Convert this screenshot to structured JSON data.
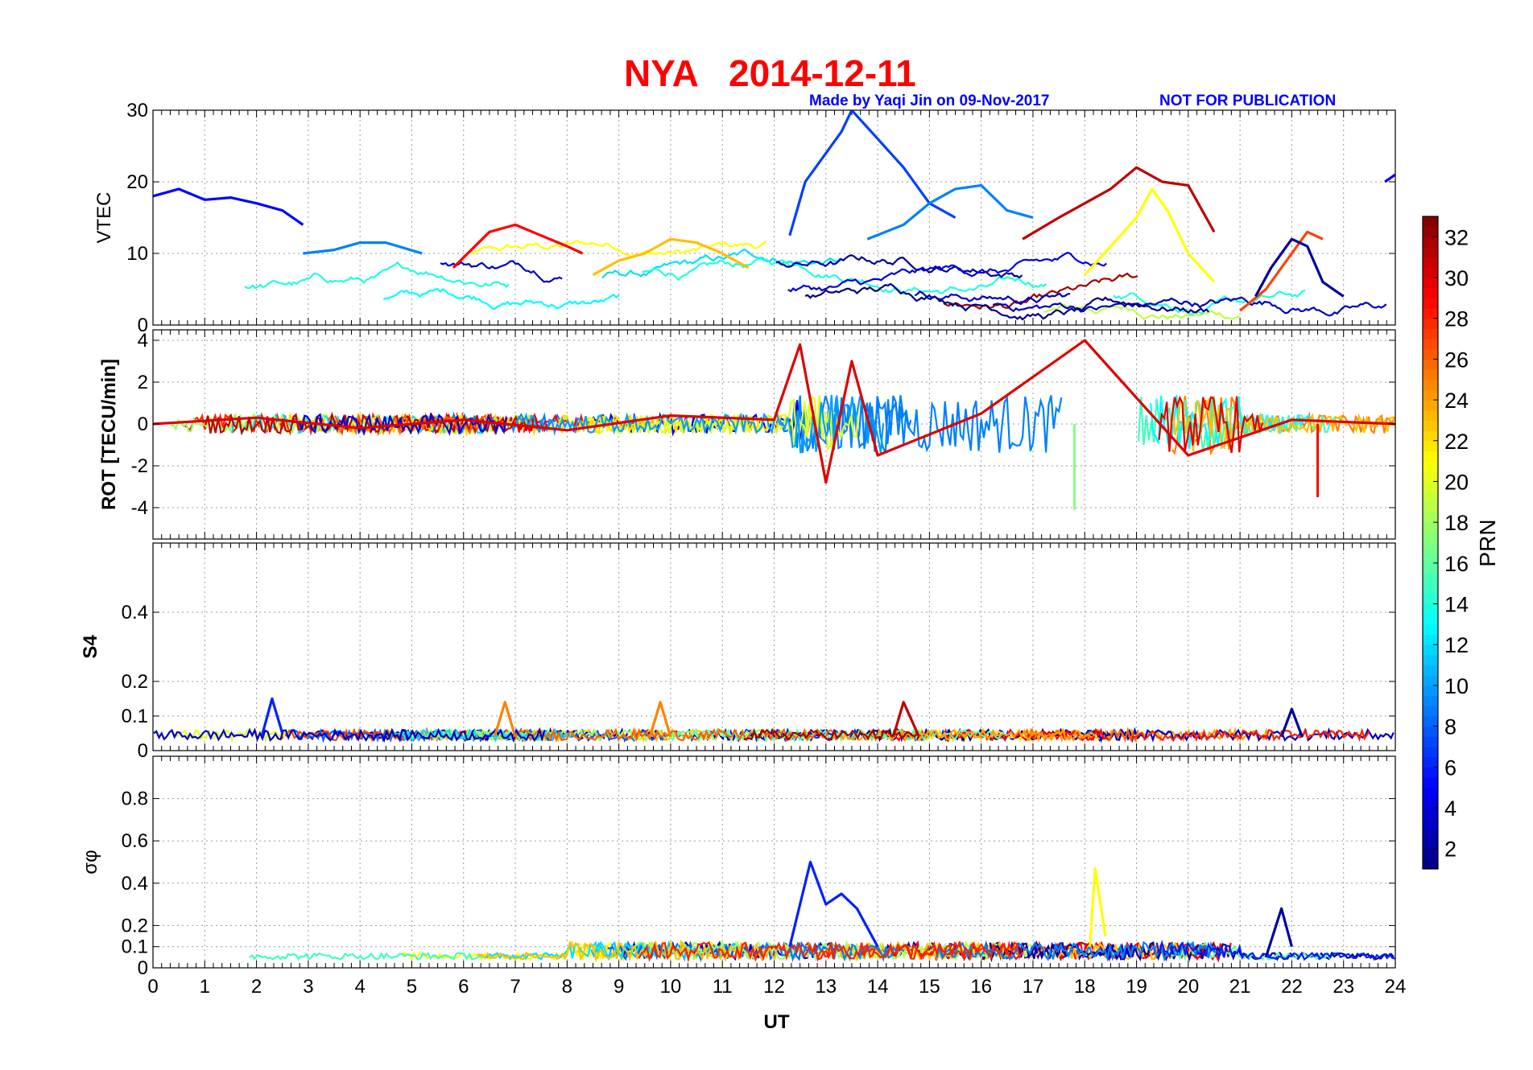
{
  "title": {
    "station": "NYA",
    "date": "2014-12-11"
  },
  "credit": {
    "made_by": "Made by Yaqi Jin on 09-Nov-2017",
    "notice": "NOT FOR PUBLICATION"
  },
  "colors": {
    "title": "#ff0000",
    "credit": "#0000ff",
    "colormap": "jet"
  },
  "chart_data": [
    {
      "type": "line",
      "panel": "VTEC",
      "ylabel": "VTEC",
      "ylim": [
        0,
        30
      ],
      "yticks": [
        0,
        10,
        20,
        30
      ],
      "xlim": [
        0,
        24
      ],
      "grid": true,
      "series": [
        {
          "prn": 5,
          "x": [
            0,
            0.5,
            1,
            1.5,
            2,
            2.5,
            2.9
          ],
          "values": [
            18,
            19,
            17.5,
            17.8,
            17,
            16,
            14
          ]
        },
        {
          "prn": 9,
          "x": [
            2.9,
            3.5,
            4,
            4.5,
            5.2
          ],
          "values": [
            10,
            10.5,
            11.5,
            11.5,
            10
          ]
        },
        {
          "prn": 7,
          "x": [
            12.3,
            12.6,
            13,
            13.3,
            13.5,
            14,
            14.5,
            15,
            15.5
          ],
          "values": [
            12.5,
            20,
            24,
            27,
            30,
            26,
            22,
            17,
            15
          ]
        },
        {
          "prn": 9,
          "x": [
            13.8,
            14.5,
            15,
            15.5,
            16,
            16.5,
            17
          ],
          "values": [
            12,
            14,
            17,
            19,
            19.5,
            16,
            15
          ]
        },
        {
          "prn": 5,
          "x": [
            23.8,
            24
          ],
          "values": [
            20,
            21
          ]
        },
        {
          "prn": 29,
          "x": [
            5.8,
            6.5,
            7,
            7.5,
            8,
            8.3
          ],
          "values": [
            8,
            13,
            14,
            12.5,
            11,
            10
          ]
        },
        {
          "prn": 31,
          "x": [
            16.8,
            17.5,
            18,
            18.5,
            19,
            19.5,
            20,
            20.5
          ],
          "values": [
            12,
            15,
            17,
            19,
            22,
            20,
            19.5,
            13
          ]
        },
        {
          "prn": 23,
          "x": [
            8.5,
            9,
            9.5,
            10,
            10.5,
            11,
            11.5
          ],
          "values": [
            7,
            9,
            10,
            12,
            11.5,
            10,
            8
          ]
        },
        {
          "prn": 21,
          "x": [
            18,
            18.5,
            19,
            19.3,
            19.6,
            20,
            20.5
          ],
          "values": [
            7,
            11,
            15,
            19,
            16,
            10,
            6
          ]
        },
        {
          "prn": 27,
          "x": [
            21,
            21.5,
            22,
            22.3,
            22.6
          ],
          "values": [
            2,
            5,
            10,
            13,
            12
          ]
        },
        {
          "prn": 2,
          "x": [
            21.3,
            21.6,
            22,
            22.3,
            22.6,
            23
          ],
          "values": [
            4,
            8,
            12,
            11,
            6,
            4
          ]
        }
      ]
    },
    {
      "type": "line",
      "panel": "ROT",
      "ylabel": "ROT [TECU/min]",
      "ylim": [
        -5.5,
        4.5
      ],
      "yticks": [
        -4,
        -2,
        0,
        2,
        4
      ],
      "xlim": [
        0,
        24
      ],
      "grid": true,
      "series": [
        {
          "prn": 30,
          "x": [
            0,
            2,
            4,
            6,
            8,
            10,
            12,
            12.5,
            13,
            13.5,
            14,
            16,
            18,
            20,
            22,
            24
          ],
          "values": [
            0,
            0.3,
            -0.2,
            0.2,
            -0.3,
            0.4,
            0.2,
            3.8,
            -2.8,
            3,
            -1.5,
            0.5,
            4,
            -1.5,
            0.2,
            0
          ]
        },
        {
          "prn": 29,
          "x": [
            22.5
          ],
          "values": [
            -3.5
          ]
        },
        {
          "prn": 17,
          "x": [
            17.8
          ],
          "values": [
            -4.1
          ]
        }
      ]
    },
    {
      "type": "line",
      "panel": "S4",
      "ylabel": "S4",
      "ylim": [
        0,
        0.6
      ],
      "yticks": [
        0,
        0.1,
        0.2,
        0.4
      ],
      "xlim": [
        0,
        24
      ],
      "grid": true,
      "series": [
        {
          "prn": 6,
          "x": [
            2.1,
            2.3,
            2.5
          ],
          "values": [
            0.04,
            0.15,
            0.05
          ]
        },
        {
          "prn": 25,
          "x": [
            6.6,
            6.8,
            7
          ],
          "values": [
            0.04,
            0.14,
            0.04
          ]
        },
        {
          "prn": 25,
          "x": [
            9.6,
            9.8,
            10
          ],
          "values": [
            0.04,
            0.14,
            0.04
          ]
        },
        {
          "prn": 31,
          "x": [
            14.3,
            14.5,
            14.8
          ],
          "values": [
            0.04,
            0.14,
            0.04
          ]
        },
        {
          "prn": 2,
          "x": [
            21.8,
            22,
            22.2
          ],
          "values": [
            0.04,
            0.12,
            0.04
          ]
        }
      ]
    },
    {
      "type": "line",
      "panel": "sigma_phi",
      "ylabel": "σφ",
      "xlabel": "UT",
      "ylim": [
        0,
        1.0
      ],
      "yticks": [
        0,
        0.1,
        0.2,
        0.4,
        0.6,
        0.8
      ],
      "xlim": [
        0,
        24
      ],
      "xticks": [
        0,
        1,
        2,
        3,
        4,
        5,
        6,
        7,
        8,
        9,
        10,
        11,
        12,
        13,
        14,
        15,
        16,
        17,
        18,
        19,
        20,
        21,
        22,
        23,
        24
      ],
      "grid": true,
      "series": [
        {
          "prn": 6,
          "x": [
            12.3,
            12.7,
            13,
            13.3,
            13.6,
            14
          ],
          "values": [
            0.1,
            0.5,
            0.3,
            0.35,
            0.28,
            0.1
          ]
        },
        {
          "prn": 21,
          "x": [
            18.1,
            18.2,
            18.4
          ],
          "values": [
            0.1,
            0.47,
            0.15
          ]
        },
        {
          "prn": 2,
          "x": [
            21.5,
            21.8,
            22
          ],
          "values": [
            0.05,
            0.28,
            0.1
          ]
        }
      ]
    }
  ],
  "colorbar": {
    "label": "PRN",
    "ticks": [
      "2",
      "4",
      "6",
      "8",
      "10",
      "12",
      "14",
      "16",
      "18",
      "20",
      "22",
      "24",
      "26",
      "28",
      "30",
      "32"
    ],
    "range": [
      1,
      33
    ]
  }
}
